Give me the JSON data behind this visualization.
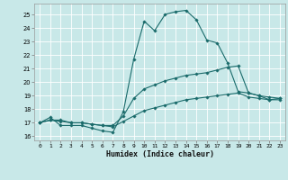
{
  "xlabel": "Humidex (Indice chaleur)",
  "xlim": [
    -0.5,
    23.5
  ],
  "ylim": [
    15.7,
    25.8
  ],
  "yticks": [
    16,
    17,
    18,
    19,
    20,
    21,
    22,
    23,
    24,
    25
  ],
  "xticks": [
    0,
    1,
    2,
    3,
    4,
    5,
    6,
    7,
    8,
    9,
    10,
    11,
    12,
    13,
    14,
    15,
    16,
    17,
    18,
    19,
    20,
    21,
    22,
    23
  ],
  "bg_color": "#c8e8e8",
  "grid_color": "#ffffff",
  "line_color": "#1a6b6b",
  "series1_x": [
    0,
    1,
    2,
    3,
    4,
    5,
    6,
    7,
    8,
    9,
    10,
    11,
    12,
    13,
    14,
    15,
    16,
    17,
    18,
    19,
    20,
    21,
    22,
    23
  ],
  "series1_y": [
    17.0,
    17.4,
    16.8,
    16.8,
    16.8,
    16.6,
    16.4,
    16.3,
    17.8,
    21.7,
    24.5,
    23.8,
    25.0,
    25.2,
    25.3,
    24.6,
    23.1,
    22.9,
    21.4,
    19.3,
    19.2,
    19.0,
    18.7,
    18.8
  ],
  "series2_x": [
    0,
    1,
    2,
    3,
    4,
    5,
    6,
    7,
    8,
    9,
    10,
    11,
    12,
    13,
    14,
    15,
    16,
    17,
    18,
    19,
    20,
    21,
    22,
    23
  ],
  "series2_y": [
    17.0,
    17.2,
    17.2,
    17.0,
    17.0,
    16.9,
    16.8,
    16.8,
    17.5,
    18.8,
    19.5,
    19.8,
    20.1,
    20.3,
    20.5,
    20.6,
    20.7,
    20.9,
    21.1,
    21.2,
    19.2,
    19.0,
    18.9,
    18.8
  ],
  "series3_x": [
    0,
    1,
    2,
    3,
    4,
    5,
    6,
    7,
    8,
    9,
    10,
    11,
    12,
    13,
    14,
    15,
    16,
    17,
    18,
    19,
    20,
    21,
    22,
    23
  ],
  "series3_y": [
    17.0,
    17.2,
    17.1,
    17.0,
    17.0,
    16.9,
    16.8,
    16.7,
    17.1,
    17.5,
    17.9,
    18.1,
    18.3,
    18.5,
    18.7,
    18.8,
    18.9,
    19.0,
    19.1,
    19.2,
    18.9,
    18.8,
    18.7,
    18.7
  ]
}
